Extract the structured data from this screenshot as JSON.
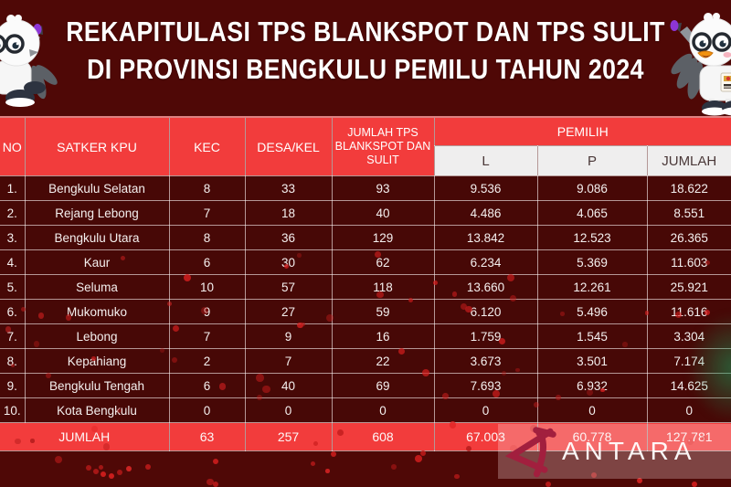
{
  "title": {
    "line1": "REKAPITULASI TPS BLANKSPOT DAN TPS SULIT",
    "line2": "DI PROVINSI BENGKULU PEMILU TAHUN 2024"
  },
  "table": {
    "headers": {
      "no": "NO",
      "satker": "SATKER KPU",
      "kec": "KEC",
      "desa": "DESA/KEL",
      "jumlah_tps": "JUMLAH TPS BLANKSPOT DAN SULIT",
      "pemilih": "PEMILIH",
      "l": "L",
      "p": "P",
      "jumlah": "JUMLAH"
    },
    "rows": [
      {
        "no": "1.",
        "satker": "Bengkulu Selatan",
        "kec": "8",
        "desa": "33",
        "tps": "93",
        "l": "9.536",
        "p": "9.086",
        "jumlah": "18.622"
      },
      {
        "no": "2.",
        "satker": "Rejang Lebong",
        "kec": "7",
        "desa": "18",
        "tps": "40",
        "l": "4.486",
        "p": "4.065",
        "jumlah": "8.551"
      },
      {
        "no": "3.",
        "satker": "Bengkulu Utara",
        "kec": "8",
        "desa": "36",
        "tps": "129",
        "l": "13.842",
        "p": "12.523",
        "jumlah": "26.365"
      },
      {
        "no": "4.",
        "satker": "Kaur",
        "kec": "6",
        "desa": "30",
        "tps": "62",
        "l": "6.234",
        "p": "5.369",
        "jumlah": "11.603"
      },
      {
        "no": "5.",
        "satker": "Seluma",
        "kec": "10",
        "desa": "57",
        "tps": "118",
        "l": "13.660",
        "p": "12.261",
        "jumlah": "25.921"
      },
      {
        "no": "6.",
        "satker": "Mukomuko",
        "kec": "9",
        "desa": "27",
        "tps": "59",
        "l": "6.120",
        "p": "5.496",
        "jumlah": "11.616"
      },
      {
        "no": "7.",
        "satker": "Lebong",
        "kec": "7",
        "desa": "9",
        "tps": "16",
        "l": "1.759",
        "p": "1.545",
        "jumlah": "3.304"
      },
      {
        "no": "8.",
        "satker": "Kepahiang",
        "kec": "2",
        "desa": "7",
        "tps": "22",
        "l": "3.673",
        "p": "3.501",
        "jumlah": "7.174"
      },
      {
        "no": "9.",
        "satker": "Bengkulu Tengah",
        "kec": "6",
        "desa": "40",
        "tps": "69",
        "l": "7.693",
        "p": "6.932",
        "jumlah": "14.625"
      },
      {
        "no": "10.",
        "satker": "Kota Bengkulu",
        "kec": "0",
        "desa": "0",
        "tps": "0",
        "l": "0",
        "p": "0",
        "jumlah": "0"
      }
    ],
    "footer": {
      "label": "JUMLAH",
      "kec": "63",
      "desa": "257",
      "tps": "608",
      "l": "67.003",
      "p": "60.778",
      "jumlah": "127.781"
    }
  },
  "watermark": {
    "brand": "ANTARA"
  },
  "icons": {
    "mascot_left": "kpu-mascot-bird",
    "mascot_right": "kpu-mascot-bird",
    "watermark_logo": "antara-logo"
  },
  "colors": {
    "background": "#4f0806",
    "header_red": "#f23c3c",
    "row_dark": "#470806",
    "subheader_gray": "#efeeee",
    "title_text": "#ffffff",
    "ink_purple": "#8d35d6"
  },
  "chart_data": {
    "type": "table",
    "title": "REKAPITULASI TPS BLANKSPOT DAN TPS SULIT DI PROVINSI BENGKULU PEMILU TAHUN 2024",
    "columns": [
      "NO",
      "SATKER KPU",
      "KEC",
      "DESA/KEL",
      "JUMLAH TPS BLANKSPOT DAN SULIT",
      "PEMILIH L",
      "PEMILIH P",
      "PEMILIH JUMLAH"
    ],
    "rows": [
      [
        1,
        "Bengkulu Selatan",
        8,
        33,
        93,
        9536,
        9086,
        18622
      ],
      [
        2,
        "Rejang Lebong",
        7,
        18,
        40,
        4486,
        4065,
        8551
      ],
      [
        3,
        "Bengkulu Utara",
        8,
        36,
        129,
        13842,
        12523,
        26365
      ],
      [
        4,
        "Kaur",
        6,
        30,
        62,
        6234,
        5369,
        11603
      ],
      [
        5,
        "Seluma",
        10,
        57,
        118,
        13660,
        12261,
        25921
      ],
      [
        6,
        "Mukomuko",
        9,
        27,
        59,
        6120,
        5496,
        11616
      ],
      [
        7,
        "Lebong",
        7,
        9,
        16,
        1759,
        1545,
        3304
      ],
      [
        8,
        "Kepahiang",
        2,
        7,
        22,
        3673,
        3501,
        7174
      ],
      [
        9,
        "Bengkulu Tengah",
        6,
        40,
        69,
        7693,
        6932,
        14625
      ],
      [
        10,
        "Kota Bengkulu",
        0,
        0,
        0,
        0,
        0,
        0
      ]
    ],
    "totals": [
      "JUMLAH",
      63,
      257,
      608,
      67003,
      60778,
      127781
    ]
  }
}
